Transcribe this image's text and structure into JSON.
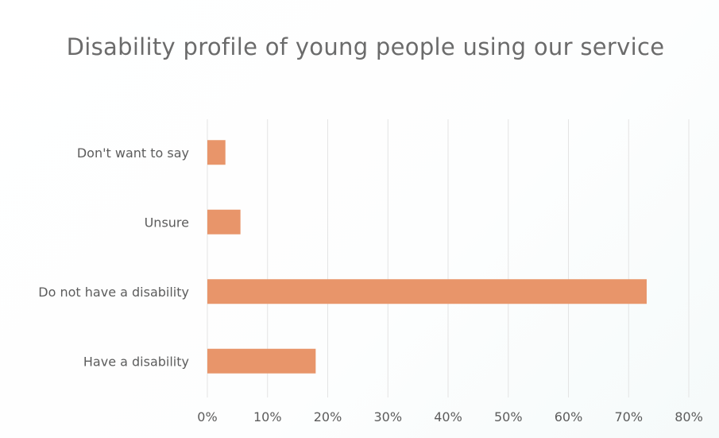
{
  "chart_data": {
    "type": "bar",
    "orientation": "horizontal",
    "title": "Disability profile of young people using our service",
    "categories": [
      "Don't want to say",
      "Unsure",
      "Do not have a disability",
      "Have a disability"
    ],
    "values": [
      3,
      5.5,
      73,
      18
    ],
    "value_unit": "%",
    "xlim": [
      0,
      80
    ],
    "x_ticks": [
      "0%",
      "10%",
      "20%",
      "30%",
      "40%",
      "50%",
      "60%",
      "70%",
      "80%"
    ],
    "grid": "vertical",
    "legend": "none",
    "bar_color": "#e8956a"
  }
}
